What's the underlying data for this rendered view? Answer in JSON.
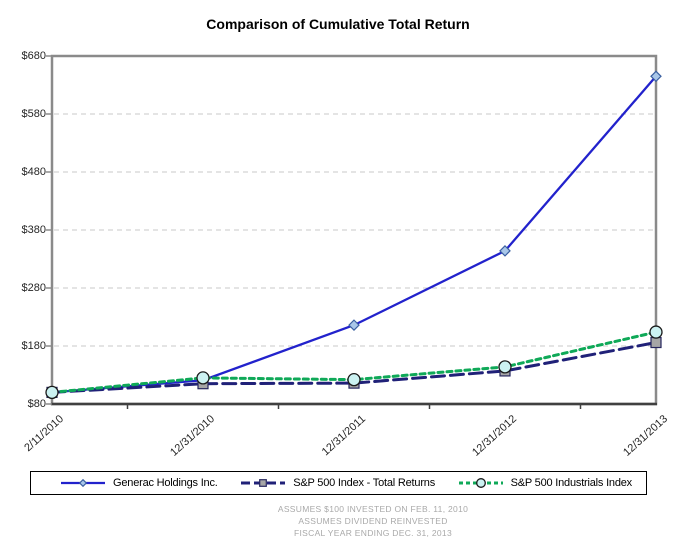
{
  "chart_data": {
    "type": "line",
    "title": "Comparison of Cumulative Total Return",
    "categories": [
      "2/11/2010",
      "12/31/2010",
      "12/31/2011",
      "12/31/2012",
      "12/31/2013"
    ],
    "series": [
      {
        "name": "Generac Holdings Inc.",
        "values": [
          100,
          121,
          216,
          344,
          645
        ],
        "color": "#2222cc",
        "dash": "solid",
        "marker": "diamond",
        "marker_fill": "#a9c7e9",
        "marker_stroke": "#3a5fa0"
      },
      {
        "name": "S&P 500 Index - Total Returns",
        "values": [
          100,
          115,
          116,
          137,
          186
        ],
        "color": "#202178",
        "dash": "long-dash",
        "marker": "square",
        "marker_fill": "#a6a6a6",
        "marker_stroke": "#26265e"
      },
      {
        "name": "S&P 500 Industrials Index",
        "values": [
          100,
          125,
          122,
          144,
          204
        ],
        "color": "#0fa958",
        "dash": "short-dash",
        "marker": "circle",
        "marker_fill": "#ccf2f2",
        "marker_stroke": "#1a1a1a"
      }
    ],
    "ylim": [
      80,
      680
    ],
    "ytick_step": 100,
    "ytick_labels": [
      "$80",
      "$180",
      "$280",
      "$380",
      "$480",
      "$580",
      "$680"
    ],
    "xlabel": "",
    "ylabel": "",
    "grid": "horizontal-dashed",
    "legend_position": "bottom"
  },
  "footnotes": {
    "lines": [
      "ASSUMES $100 INVESTED ON FEB. 11, 2010",
      "ASSUMES DIVIDEND REINVESTED",
      "FISCAL YEAR ENDING DEC. 31, 2013"
    ]
  }
}
